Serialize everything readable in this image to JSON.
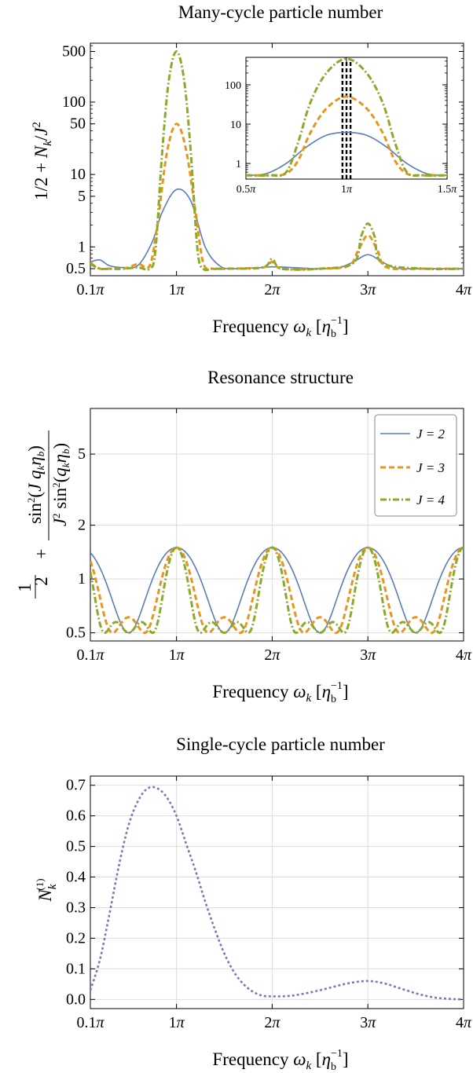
{
  "colors": {
    "blue": "#5b7db6",
    "orange": "#e8951f",
    "green": "#8aaa2a",
    "purple": "#7b78b8",
    "grid": "#dddddd"
  },
  "chart_data": [
    {
      "type": "line",
      "title": "Many-cycle particle number",
      "xlabel": "Frequency ω_k [η_b^-1]",
      "ylabel": "1/2 + N_k/J^2",
      "yscale": "log",
      "xlim": [
        0.1,
        4
      ],
      "ylim": [
        0.4,
        650
      ],
      "xticks": [
        0.1,
        1,
        2,
        3,
        4
      ],
      "xtick_labels": [
        "0.1π",
        "1π",
        "2π",
        "3π",
        "4π"
      ],
      "yticks": [
        0.5,
        1,
        5,
        10,
        50,
        100,
        500
      ],
      "ytick_labels": [
        "0.5",
        "1",
        "5",
        "10",
        "50",
        "100",
        "500"
      ],
      "grid": false,
      "series": [
        {
          "color_key": "blue",
          "dash": "solid",
          "x": [
            0.1,
            0.2,
            0.3,
            0.45,
            0.6,
            0.75,
            0.85,
            1.0,
            1.15,
            1.3,
            1.45,
            1.6,
            1.9,
            2.0,
            2.2,
            2.5,
            2.7,
            2.85,
            3.0,
            3.15,
            3.3,
            3.6,
            4.0
          ],
          "y": [
            0.62,
            0.66,
            0.55,
            0.52,
            0.56,
            1.2,
            3.0,
            6.2,
            4.3,
            1.0,
            0.55,
            0.5,
            0.52,
            0.53,
            0.52,
            0.5,
            0.52,
            0.62,
            0.78,
            0.62,
            0.51,
            0.5,
            0.5
          ]
        },
        {
          "color_key": "orange",
          "dash": "dashed",
          "x": [
            0.1,
            0.2,
            0.3,
            0.45,
            0.6,
            0.72,
            0.8,
            0.9,
            1.0,
            1.1,
            1.2,
            1.28,
            1.38,
            1.5,
            1.9,
            2.0,
            2.1,
            2.5,
            2.8,
            2.9,
            3.0,
            3.1,
            3.2,
            3.6,
            4.0
          ],
          "y": [
            0.6,
            0.5,
            0.5,
            0.5,
            0.58,
            0.55,
            2.0,
            20,
            50,
            22,
            3.0,
            0.6,
            0.5,
            0.5,
            0.52,
            0.62,
            0.5,
            0.5,
            0.55,
            0.9,
            1.45,
            0.9,
            0.52,
            0.5,
            0.5
          ]
        },
        {
          "color_key": "green",
          "dash": "dashdot",
          "x": [
            0.1,
            0.2,
            0.3,
            0.45,
            0.6,
            0.72,
            0.78,
            0.85,
            0.92,
            1.0,
            1.08,
            1.15,
            1.22,
            1.28,
            1.38,
            1.5,
            1.9,
            2.0,
            2.1,
            2.5,
            2.85,
            2.93,
            3.0,
            3.07,
            3.15,
            3.6,
            4.0
          ],
          "y": [
            0.58,
            0.5,
            0.5,
            0.5,
            0.52,
            0.5,
            0.9,
            20,
            200,
            500,
            200,
            20,
            0.9,
            0.5,
            0.5,
            0.5,
            0.52,
            0.68,
            0.5,
            0.5,
            0.6,
            1.4,
            2.1,
            1.4,
            0.6,
            0.5,
            0.5
          ]
        }
      ],
      "inset": {
        "xlim": [
          0.5,
          1.5
        ],
        "ylim": [
          0.4,
          500
        ],
        "yscale": "log",
        "xticks": [
          0.5,
          1,
          1.5
        ],
        "xtick_labels": [
          "0.5π",
          "1π",
          "1.5π"
        ],
        "yticks": [
          1,
          10,
          100
        ],
        "ytick_labels": [
          "1",
          "10",
          "100"
        ],
        "vlines": [
          0.98,
          1.0,
          1.02
        ],
        "series": [
          {
            "color_key": "blue",
            "dash": "solid",
            "x": [
              0.5,
              0.6,
              0.7,
              0.8,
              0.9,
              1.0,
              1.1,
              1.2,
              1.3,
              1.4,
              1.5
            ],
            "y": [
              0.5,
              0.55,
              1.0,
              2.6,
              5.2,
              6.2,
              5.2,
              2.6,
              1.0,
              0.55,
              0.5
            ]
          },
          {
            "color_key": "orange",
            "dash": "dashed",
            "x": [
              0.5,
              0.62,
              0.7,
              0.76,
              0.82,
              0.9,
              1.0,
              1.1,
              1.18,
              1.24,
              1.3,
              1.38,
              1.5
            ],
            "y": [
              0.5,
              0.5,
              0.55,
              1.2,
              6,
              25,
              50,
              25,
              6,
              1.2,
              0.55,
              0.5,
              0.5
            ]
          },
          {
            "color_key": "green",
            "dash": "dashdot",
            "x": [
              0.5,
              0.62,
              0.7,
              0.76,
              0.82,
              0.9,
              1.0,
              1.1,
              1.18,
              1.24,
              1.3,
              1.38,
              1.5
            ],
            "y": [
              0.5,
              0.5,
              0.6,
              3.5,
              35,
              200,
              460,
              200,
              35,
              3.5,
              0.6,
              0.5,
              0.5
            ]
          }
        ]
      }
    },
    {
      "type": "line",
      "title": "Resonance structure",
      "xlabel": "Frequency ω_k [η_b^-1]",
      "ylabel": "1/2 + sin^2(J q_k η_b) / (J^2 sin^2(q_k η_b))",
      "yscale": "log",
      "xlim": [
        0.1,
        4
      ],
      "ylim": [
        0.45,
        9
      ],
      "xticks": [
        0.1,
        1,
        2,
        3,
        4
      ],
      "xtick_labels": [
        "0.1π",
        "1π",
        "2π",
        "3π",
        "4π"
      ],
      "yticks": [
        0.5,
        1,
        2,
        5
      ],
      "ytick_labels": [
        "0.5",
        "1",
        "2",
        "5"
      ],
      "grid": true,
      "legend": "top-right",
      "series": [
        {
          "name": "J = 2",
          "J": 2,
          "color_key": "blue",
          "dash": "solid"
        },
        {
          "name": "J = 3",
          "J": 3,
          "color_key": "orange",
          "dash": "dashed"
        },
        {
          "name": "J = 4",
          "J": 4,
          "color_key": "green",
          "dash": "dashdot"
        }
      ]
    },
    {
      "type": "line",
      "title": "Single-cycle particle number",
      "xlabel": "Frequency ω_k [η_b^-1]",
      "ylabel": "N_k^(1)",
      "xlim": [
        0.1,
        4
      ],
      "ylim": [
        -0.03,
        0.73
      ],
      "xticks": [
        0.1,
        1,
        2,
        3,
        4
      ],
      "xtick_labels": [
        "0.1π",
        "1π",
        "2π",
        "3π",
        "4π"
      ],
      "yticks": [
        0.0,
        0.1,
        0.2,
        0.3,
        0.4,
        0.5,
        0.6,
        0.7
      ],
      "ytick_labels": [
        "0.0",
        "0.1",
        "0.2",
        "0.3",
        "0.4",
        "0.5",
        "0.6",
        "0.7"
      ],
      "grid": true,
      "series": [
        {
          "color_key": "purple",
          "dash": "dotted",
          "x": [
            0.1,
            0.2,
            0.3,
            0.4,
            0.5,
            0.6,
            0.7,
            0.8,
            0.9,
            1.0,
            1.1,
            1.2,
            1.3,
            1.4,
            1.5,
            1.6,
            1.7,
            1.8,
            1.9,
            2.0,
            2.1,
            2.2,
            2.3,
            2.4,
            2.5,
            2.6,
            2.7,
            2.8,
            2.9,
            3.0,
            3.1,
            3.2,
            3.3,
            3.4,
            3.5,
            3.6,
            3.7,
            3.8,
            3.9,
            4.0
          ],
          "y": [
            0.03,
            0.13,
            0.28,
            0.44,
            0.57,
            0.65,
            0.69,
            0.69,
            0.66,
            0.6,
            0.51,
            0.42,
            0.32,
            0.23,
            0.15,
            0.09,
            0.05,
            0.025,
            0.012,
            0.01,
            0.01,
            0.012,
            0.017,
            0.023,
            0.03,
            0.038,
            0.046,
            0.053,
            0.058,
            0.06,
            0.057,
            0.05,
            0.04,
            0.03,
            0.02,
            0.012,
            0.006,
            0.003,
            0.001,
            0.0
          ]
        }
      ]
    }
  ]
}
